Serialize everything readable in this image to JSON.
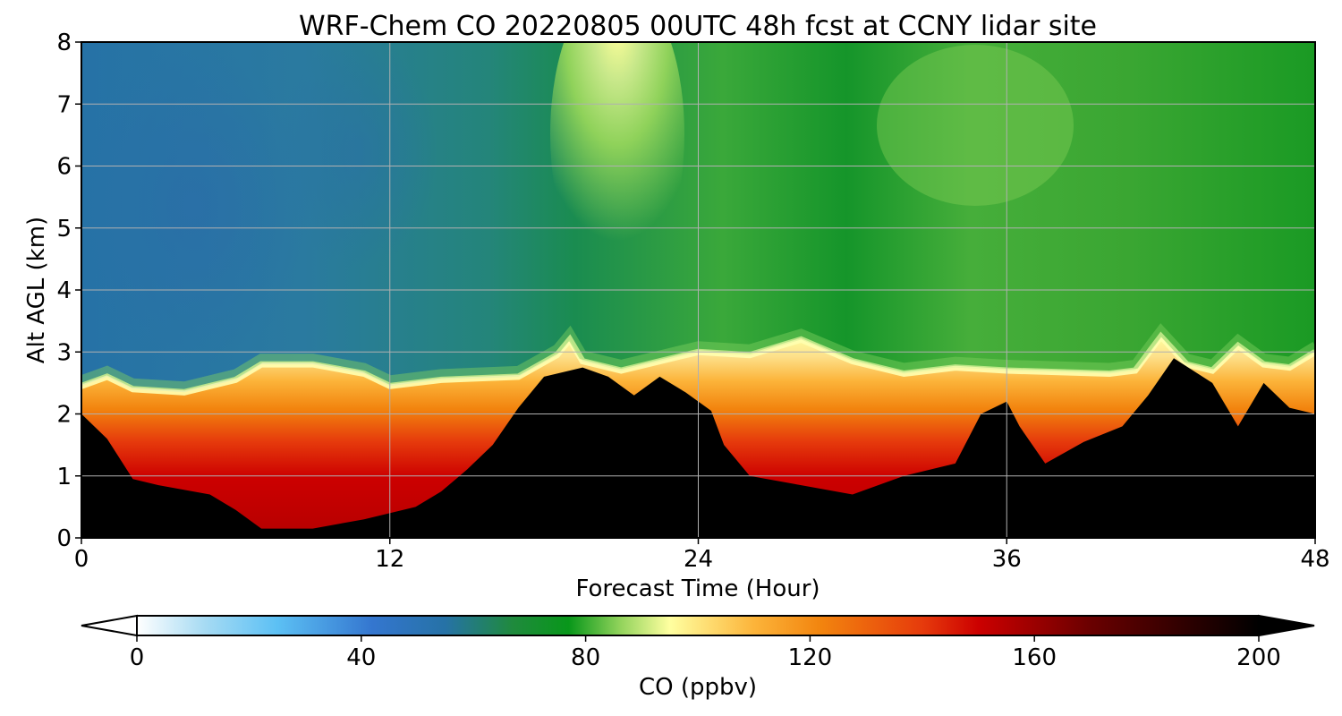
{
  "chart_data": {
    "type": "heatmap",
    "title": "WRF-Chem CO  20220805 00UTC 48h fcst at CCNY lidar site",
    "xlabel": "Forecast Time (Hour)",
    "ylabel": "Alt AGL (km)",
    "xlim": [
      0,
      48
    ],
    "ylim": [
      0,
      8
    ],
    "x_ticks": [
      0,
      12,
      24,
      36,
      48
    ],
    "x_tick_labels": [
      "0",
      "12",
      "24",
      "36",
      "48"
    ],
    "y_ticks": [
      0,
      1,
      2,
      3,
      4,
      5,
      6,
      7,
      8
    ],
    "y_tick_labels": [
      "0",
      "1",
      "2",
      "3",
      "4",
      "5",
      "6",
      "7",
      "8"
    ],
    "grid": true,
    "colorbar": {
      "label": "CO  (ppbv)",
      "range": [
        0,
        200
      ],
      "ticks": [
        0,
        40,
        80,
        120,
        160,
        200
      ],
      "tick_labels": [
        "0",
        "40",
        "80",
        "120",
        "160",
        "200"
      ],
      "extend": "both",
      "colors": [
        {
          "v": 0,
          "c": "#ffffff"
        },
        {
          "v": 12,
          "c": "#a7dbf3"
        },
        {
          "v": 25,
          "c": "#5cc0f4"
        },
        {
          "v": 42,
          "c": "#3476cf"
        },
        {
          "v": 55,
          "c": "#2672a6"
        },
        {
          "v": 67,
          "c": "#1f8a3d"
        },
        {
          "v": 77,
          "c": "#08971a"
        },
        {
          "v": 86,
          "c": "#8fd25a"
        },
        {
          "v": 95,
          "c": "#ffffa0"
        },
        {
          "v": 110,
          "c": "#fcb43a"
        },
        {
          "v": 122,
          "c": "#f2840e"
        },
        {
          "v": 140,
          "c": "#e63b0c"
        },
        {
          "v": 150,
          "c": "#cc0000"
        },
        {
          "v": 170,
          "c": "#6a0000"
        },
        {
          "v": 200,
          "c": "#000000"
        }
      ]
    },
    "fields": {
      "boundary_layer_top_km": [
        {
          "hour": 0,
          "km": 2.45
        },
        {
          "hour": 1,
          "km": 2.6
        },
        {
          "hour": 2,
          "km": 2.4
        },
        {
          "hour": 4,
          "km": 2.35
        },
        {
          "hour": 6,
          "km": 2.55
        },
        {
          "hour": 7,
          "km": 2.8
        },
        {
          "hour": 9,
          "km": 2.8
        },
        {
          "hour": 11,
          "km": 2.65
        },
        {
          "hour": 12,
          "km": 2.45
        },
        {
          "hour": 14,
          "km": 2.55
        },
        {
          "hour": 17,
          "km": 2.6
        },
        {
          "hour": 18.5,
          "km": 2.95
        },
        {
          "hour": 19,
          "km": 3.2
        },
        {
          "hour": 19.5,
          "km": 2.85
        },
        {
          "hour": 21,
          "km": 2.7
        },
        {
          "hour": 22,
          "km": 2.8
        },
        {
          "hour": 23.5,
          "km": 2.95
        },
        {
          "hour": 24,
          "km": 3.0
        },
        {
          "hour": 26,
          "km": 2.95
        },
        {
          "hour": 28,
          "km": 3.2
        },
        {
          "hour": 30,
          "km": 2.85
        },
        {
          "hour": 32,
          "km": 2.65
        },
        {
          "hour": 34,
          "km": 2.75
        },
        {
          "hour": 36,
          "km": 2.7
        },
        {
          "hour": 40,
          "km": 2.65
        },
        {
          "hour": 41,
          "km": 2.7
        },
        {
          "hour": 42,
          "km": 3.25
        },
        {
          "hour": 43,
          "km": 2.8
        },
        {
          "hour": 44,
          "km": 2.7
        },
        {
          "hour": 45,
          "km": 3.1
        },
        {
          "hour": 46,
          "km": 2.8
        },
        {
          "hour": 47,
          "km": 2.75
        },
        {
          "hour": 48,
          "km": 3.0
        }
      ],
      "saturated_top_km": [
        {
          "hour": 0,
          "km": 2.0
        },
        {
          "hour": 1,
          "km": 1.6
        },
        {
          "hour": 2,
          "km": 0.95
        },
        {
          "hour": 3,
          "km": 0.85
        },
        {
          "hour": 5,
          "km": 0.7
        },
        {
          "hour": 6,
          "km": 0.45
        },
        {
          "hour": 7,
          "km": 0.15
        },
        {
          "hour": 9,
          "km": 0.15
        },
        {
          "hour": 11,
          "km": 0.3
        },
        {
          "hour": 13,
          "km": 0.5
        },
        {
          "hour": 14,
          "km": 0.75
        },
        {
          "hour": 15,
          "km": 1.1
        },
        {
          "hour": 16,
          "km": 1.5
        },
        {
          "hour": 17,
          "km": 2.1
        },
        {
          "hour": 18,
          "km": 2.6
        },
        {
          "hour": 19.5,
          "km": 2.75
        },
        {
          "hour": 20.5,
          "km": 2.6
        },
        {
          "hour": 21.5,
          "km": 2.3
        },
        {
          "hour": 22.5,
          "km": 2.6
        },
        {
          "hour": 23.5,
          "km": 2.35
        },
        {
          "hour": 24.5,
          "km": 2.05
        },
        {
          "hour": 25,
          "km": 1.5
        },
        {
          "hour": 26,
          "km": 1.0
        },
        {
          "hour": 28,
          "km": 0.85
        },
        {
          "hour": 30,
          "km": 0.7
        },
        {
          "hour": 32,
          "km": 1.0
        },
        {
          "hour": 34,
          "km": 1.2
        },
        {
          "hour": 35,
          "km": 2.0
        },
        {
          "hour": 36,
          "km": 2.2
        },
        {
          "hour": 36.5,
          "km": 1.8
        },
        {
          "hour": 37.5,
          "km": 1.2
        },
        {
          "hour": 39,
          "km": 1.55
        },
        {
          "hour": 40.5,
          "km": 1.8
        },
        {
          "hour": 41.5,
          "km": 2.3
        },
        {
          "hour": 42.5,
          "km": 2.9
        },
        {
          "hour": 44,
          "km": 2.5
        },
        {
          "hour": 45,
          "km": 1.8
        },
        {
          "hour": 46,
          "km": 2.5
        },
        {
          "hour": 47,
          "km": 2.1
        },
        {
          "hour": 48,
          "km": 2.0
        }
      ],
      "free_troposphere_bands": [
        {
          "label": "low-CO tongue",
          "hours": [
            0,
            16
          ],
          "km": [
            3.2,
            8
          ],
          "ppbv": 58
        },
        {
          "label": "enhanced plume",
          "hours": [
            18,
            23
          ],
          "km": [
            4.5,
            8
          ],
          "ppbv": 90
        },
        {
          "label": "moderate band",
          "hours": [
            23,
            48
          ],
          "km": [
            3.2,
            8
          ],
          "ppbv": 78
        }
      ]
    }
  }
}
